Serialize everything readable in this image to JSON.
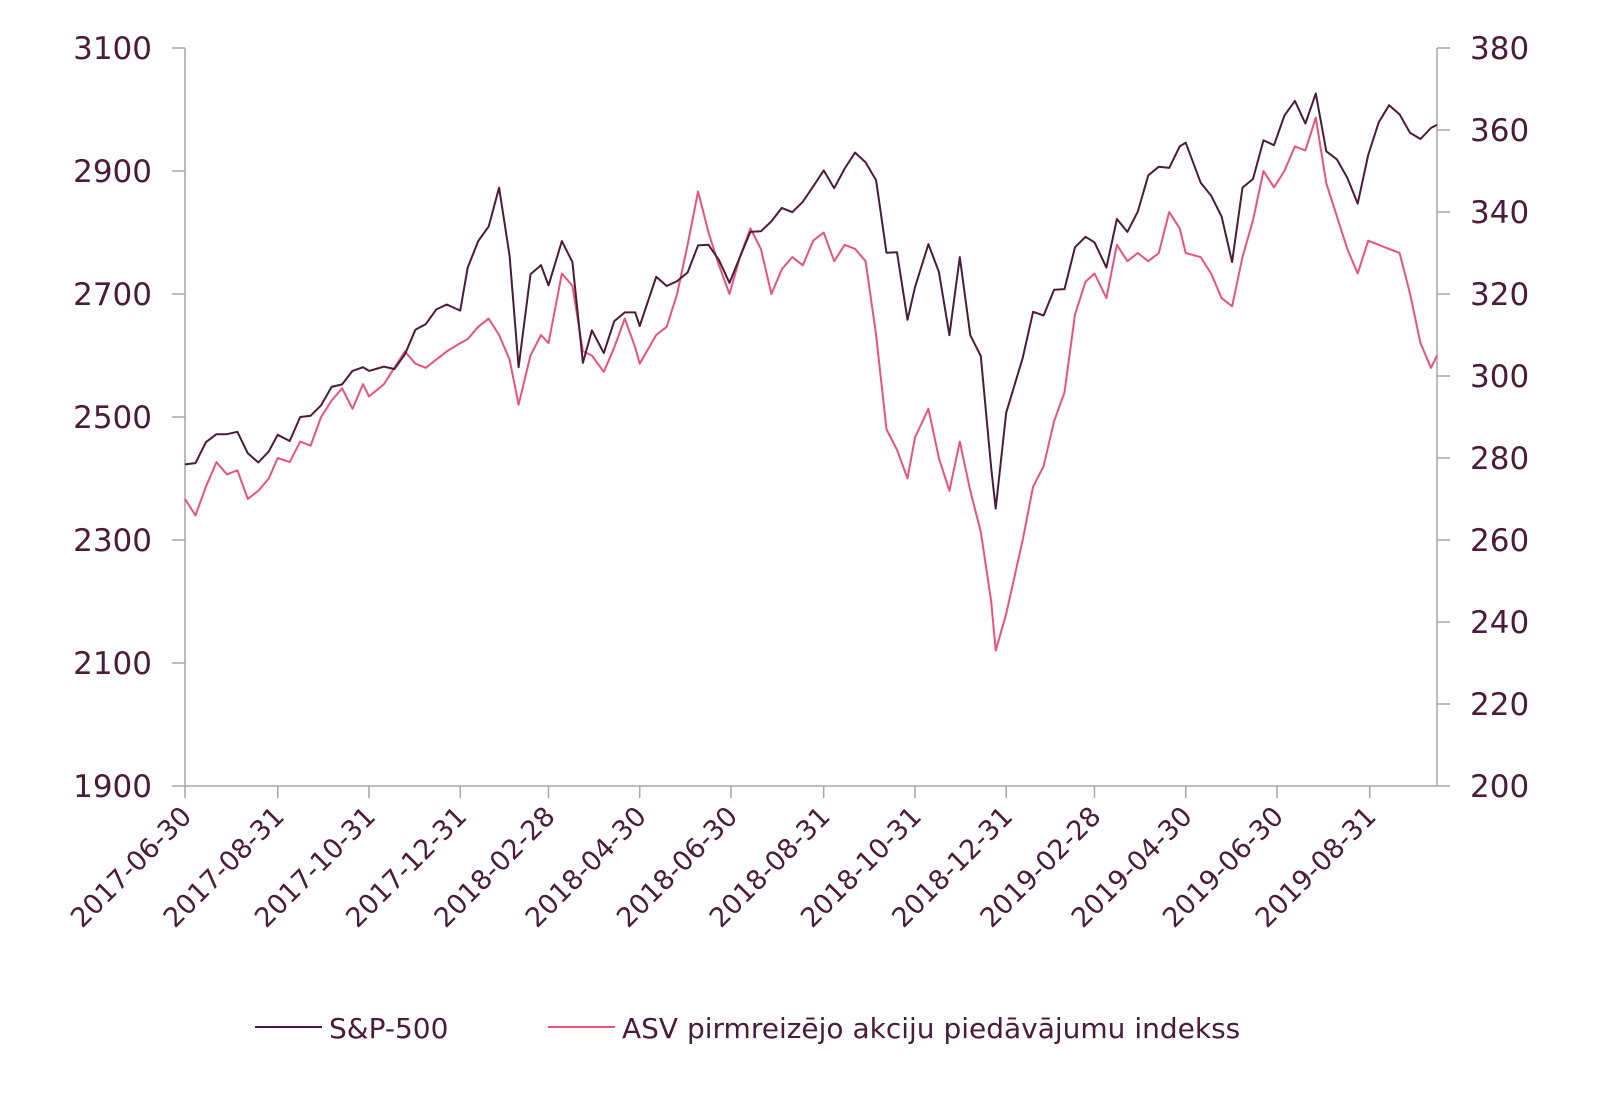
{
  "chart_data": {
    "type": "line",
    "title": "",
    "grid": false,
    "legend": "bottom",
    "x_tick_labels": [
      "2017-06-30",
      "2017-08-31",
      "2017-10-31",
      "2017-12-31",
      "2018-02-28",
      "2018-04-30",
      "2018-06-30",
      "2018-08-31",
      "2018-10-31",
      "2018-12-31",
      "2019-02-28",
      "2019-04-30",
      "2019-06-30",
      "2019-08-31"
    ],
    "x_range": [
      "2017-06-30",
      "2019-10-15"
    ],
    "left_axis": {
      "min": 1900,
      "max": 3100,
      "ticks": [
        "1900",
        "2100",
        "2300",
        "2500",
        "2700",
        "2900",
        "3100"
      ]
    },
    "right_axis": {
      "min": 200,
      "max": 380,
      "ticks": [
        "200",
        "220",
        "240",
        "260",
        "280",
        "300",
        "320",
        "340",
        "360",
        "380"
      ]
    },
    "series": [
      {
        "name": "S&P-500",
        "axis": "left",
        "color": "#4a1c3a",
        "points": [
          [
            "2017-06-30",
            2423
          ],
          [
            "2017-07-07",
            2425
          ],
          [
            "2017-07-14",
            2459
          ],
          [
            "2017-07-21",
            2472
          ],
          [
            "2017-07-28",
            2472
          ],
          [
            "2017-08-04",
            2476
          ],
          [
            "2017-08-11",
            2441
          ],
          [
            "2017-08-18",
            2426
          ],
          [
            "2017-08-25",
            2444
          ],
          [
            "2017-08-31",
            2471
          ],
          [
            "2017-09-08",
            2461
          ],
          [
            "2017-09-15",
            2500
          ],
          [
            "2017-09-22",
            2502
          ],
          [
            "2017-09-29",
            2519
          ],
          [
            "2017-10-06",
            2549
          ],
          [
            "2017-10-13",
            2553
          ],
          [
            "2017-10-20",
            2575
          ],
          [
            "2017-10-27",
            2581
          ],
          [
            "2017-10-31",
            2575
          ],
          [
            "2017-11-10",
            2582
          ],
          [
            "2017-11-17",
            2578
          ],
          [
            "2017-11-24",
            2602
          ],
          [
            "2017-12-01",
            2642
          ],
          [
            "2017-12-08",
            2651
          ],
          [
            "2017-12-15",
            2675
          ],
          [
            "2017-12-22",
            2683
          ],
          [
            "2017-12-31",
            2673
          ],
          [
            "2018-01-05",
            2743
          ],
          [
            "2018-01-12",
            2786
          ],
          [
            "2018-01-19",
            2810
          ],
          [
            "2018-01-26",
            2873
          ],
          [
            "2018-02-02",
            2762
          ],
          [
            "2018-02-08",
            2581
          ],
          [
            "2018-02-16",
            2732
          ],
          [
            "2018-02-23",
            2747
          ],
          [
            "2018-02-28",
            2714
          ],
          [
            "2018-03-09",
            2786
          ],
          [
            "2018-03-16",
            2752
          ],
          [
            "2018-03-23",
            2588
          ],
          [
            "2018-03-29",
            2641
          ],
          [
            "2018-04-06",
            2604
          ],
          [
            "2018-04-13",
            2656
          ],
          [
            "2018-04-20",
            2670
          ],
          [
            "2018-04-27",
            2670
          ],
          [
            "2018-04-30",
            2648
          ],
          [
            "2018-05-11",
            2728
          ],
          [
            "2018-05-18",
            2713
          ],
          [
            "2018-05-25",
            2721
          ],
          [
            "2018-06-01",
            2735
          ],
          [
            "2018-06-08",
            2779
          ],
          [
            "2018-06-15",
            2780
          ],
          [
            "2018-06-22",
            2755
          ],
          [
            "2018-06-29",
            2718
          ],
          [
            "2018-07-06",
            2760
          ],
          [
            "2018-07-13",
            2801
          ],
          [
            "2018-07-20",
            2802
          ],
          [
            "2018-07-27",
            2818
          ],
          [
            "2018-08-03",
            2840
          ],
          [
            "2018-08-10",
            2833
          ],
          [
            "2018-08-17",
            2850
          ],
          [
            "2018-08-24",
            2875
          ],
          [
            "2018-08-31",
            2901
          ],
          [
            "2018-09-07",
            2872
          ],
          [
            "2018-09-14",
            2904
          ],
          [
            "2018-09-21",
            2930
          ],
          [
            "2018-09-28",
            2914
          ],
          [
            "2018-10-05",
            2885
          ],
          [
            "2018-10-12",
            2767
          ],
          [
            "2018-10-19",
            2768
          ],
          [
            "2018-10-26",
            2658
          ],
          [
            "2018-10-31",
            2711
          ],
          [
            "2018-11-09",
            2781
          ],
          [
            "2018-11-16",
            2736
          ],
          [
            "2018-11-23",
            2633
          ],
          [
            "2018-11-30",
            2760
          ],
          [
            "2018-12-07",
            2633
          ],
          [
            "2018-12-14",
            2599
          ],
          [
            "2018-12-21",
            2417
          ],
          [
            "2018-12-24",
            2351
          ],
          [
            "2018-12-31",
            2507
          ],
          [
            "2019-01-11",
            2596
          ],
          [
            "2019-01-18",
            2671
          ],
          [
            "2019-01-25",
            2665
          ],
          [
            "2019-02-01",
            2707
          ],
          [
            "2019-02-08",
            2708
          ],
          [
            "2019-02-15",
            2776
          ],
          [
            "2019-02-22",
            2793
          ],
          [
            "2019-02-28",
            2784
          ],
          [
            "2019-03-08",
            2743
          ],
          [
            "2019-03-15",
            2822
          ],
          [
            "2019-03-22",
            2801
          ],
          [
            "2019-03-29",
            2834
          ],
          [
            "2019-04-05",
            2893
          ],
          [
            "2019-04-12",
            2907
          ],
          [
            "2019-04-19",
            2905
          ],
          [
            "2019-04-26",
            2940
          ],
          [
            "2019-04-30",
            2946
          ],
          [
            "2019-05-10",
            2881
          ],
          [
            "2019-05-17",
            2860
          ],
          [
            "2019-05-24",
            2826
          ],
          [
            "2019-05-31",
            2752
          ],
          [
            "2019-06-07",
            2873
          ],
          [
            "2019-06-14",
            2887
          ],
          [
            "2019-06-21",
            2950
          ],
          [
            "2019-06-28",
            2942
          ],
          [
            "2019-07-05",
            2990
          ],
          [
            "2019-07-12",
            3014
          ],
          [
            "2019-07-19",
            2977
          ],
          [
            "2019-07-26",
            3026
          ],
          [
            "2019-08-02",
            2932
          ],
          [
            "2019-08-09",
            2919
          ],
          [
            "2019-08-16",
            2889
          ],
          [
            "2019-08-23",
            2847
          ],
          [
            "2019-08-30",
            2926
          ],
          [
            "2019-09-06",
            2979
          ],
          [
            "2019-09-13",
            3007
          ],
          [
            "2019-09-20",
            2992
          ],
          [
            "2019-09-27",
            2962
          ],
          [
            "2019-10-04",
            2952
          ],
          [
            "2019-10-11",
            2970
          ],
          [
            "2019-10-15",
            2975
          ]
        ]
      },
      {
        "name": "ASV pirmreizējo akciju piedāvājumu indekss",
        "axis": "right",
        "color": "#e8547a",
        "points": [
          [
            "2017-06-30",
            270
          ],
          [
            "2017-07-07",
            266
          ],
          [
            "2017-07-14",
            273
          ],
          [
            "2017-07-21",
            279
          ],
          [
            "2017-07-28",
            276
          ],
          [
            "2017-08-04",
            277
          ],
          [
            "2017-08-11",
            270
          ],
          [
            "2017-08-18",
            272
          ],
          [
            "2017-08-25",
            275
          ],
          [
            "2017-08-31",
            280
          ],
          [
            "2017-09-08",
            279
          ],
          [
            "2017-09-15",
            284
          ],
          [
            "2017-09-22",
            283
          ],
          [
            "2017-09-29",
            290
          ],
          [
            "2017-10-06",
            294
          ],
          [
            "2017-10-13",
            297
          ],
          [
            "2017-10-20",
            292
          ],
          [
            "2017-10-27",
            298
          ],
          [
            "2017-10-31",
            295
          ],
          [
            "2017-11-10",
            298
          ],
          [
            "2017-11-17",
            302
          ],
          [
            "2017-11-24",
            306
          ],
          [
            "2017-12-01",
            303
          ],
          [
            "2017-12-08",
            302
          ],
          [
            "2017-12-15",
            304
          ],
          [
            "2017-12-22",
            306
          ],
          [
            "2017-12-31",
            308
          ],
          [
            "2018-01-05",
            309
          ],
          [
            "2018-01-12",
            312
          ],
          [
            "2018-01-19",
            314
          ],
          [
            "2018-01-26",
            310
          ],
          [
            "2018-02-02",
            304
          ],
          [
            "2018-02-08",
            293
          ],
          [
            "2018-02-16",
            305
          ],
          [
            "2018-02-23",
            310
          ],
          [
            "2018-02-28",
            308
          ],
          [
            "2018-03-09",
            325
          ],
          [
            "2018-03-16",
            322
          ],
          [
            "2018-03-23",
            306
          ],
          [
            "2018-03-29",
            305
          ],
          [
            "2018-04-06",
            301
          ],
          [
            "2018-04-13",
            307
          ],
          [
            "2018-04-20",
            314
          ],
          [
            "2018-04-27",
            307
          ],
          [
            "2018-04-30",
            303
          ],
          [
            "2018-05-11",
            310
          ],
          [
            "2018-05-18",
            312
          ],
          [
            "2018-05-25",
            320
          ],
          [
            "2018-06-01",
            332
          ],
          [
            "2018-06-08",
            345
          ],
          [
            "2018-06-15",
            335
          ],
          [
            "2018-06-22",
            327
          ],
          [
            "2018-06-29",
            320
          ],
          [
            "2018-07-06",
            329
          ],
          [
            "2018-07-13",
            336
          ],
          [
            "2018-07-20",
            331
          ],
          [
            "2018-07-27",
            320
          ],
          [
            "2018-08-03",
            326
          ],
          [
            "2018-08-10",
            329
          ],
          [
            "2018-08-17",
            327
          ],
          [
            "2018-08-24",
            333
          ],
          [
            "2018-08-31",
            335
          ],
          [
            "2018-09-07",
            328
          ],
          [
            "2018-09-14",
            332
          ],
          [
            "2018-09-21",
            331
          ],
          [
            "2018-09-28",
            328
          ],
          [
            "2018-10-05",
            310
          ],
          [
            "2018-10-12",
            287
          ],
          [
            "2018-10-19",
            282
          ],
          [
            "2018-10-26",
            275
          ],
          [
            "2018-10-31",
            285
          ],
          [
            "2018-11-09",
            292
          ],
          [
            "2018-11-16",
            280
          ],
          [
            "2018-11-23",
            272
          ],
          [
            "2018-11-30",
            284
          ],
          [
            "2018-12-07",
            272
          ],
          [
            "2018-12-14",
            262
          ],
          [
            "2018-12-21",
            245
          ],
          [
            "2018-12-24",
            233
          ],
          [
            "2018-12-31",
            242
          ],
          [
            "2019-01-11",
            260
          ],
          [
            "2019-01-18",
            273
          ],
          [
            "2019-01-25",
            278
          ],
          [
            "2019-02-01",
            289
          ],
          [
            "2019-02-08",
            296
          ],
          [
            "2019-02-15",
            315
          ],
          [
            "2019-02-22",
            323
          ],
          [
            "2019-02-28",
            325
          ],
          [
            "2019-03-08",
            319
          ],
          [
            "2019-03-15",
            332
          ],
          [
            "2019-03-22",
            328
          ],
          [
            "2019-03-29",
            330
          ],
          [
            "2019-04-05",
            328
          ],
          [
            "2019-04-12",
            330
          ],
          [
            "2019-04-19",
            340
          ],
          [
            "2019-04-26",
            336
          ],
          [
            "2019-04-30",
            330
          ],
          [
            "2019-05-10",
            329
          ],
          [
            "2019-05-17",
            325
          ],
          [
            "2019-05-24",
            319
          ],
          [
            "2019-05-31",
            317
          ],
          [
            "2019-06-07",
            329
          ],
          [
            "2019-06-14",
            338
          ],
          [
            "2019-06-21",
            350
          ],
          [
            "2019-06-28",
            346
          ],
          [
            "2019-07-05",
            350
          ],
          [
            "2019-07-12",
            356
          ],
          [
            "2019-07-19",
            355
          ],
          [
            "2019-07-26",
            363
          ],
          [
            "2019-08-02",
            347
          ],
          [
            "2019-08-09",
            339
          ],
          [
            "2019-08-16",
            331
          ],
          [
            "2019-08-23",
            325
          ],
          [
            "2019-08-30",
            333
          ],
          [
            "2019-09-06",
            332
          ],
          [
            "2019-09-13",
            331
          ],
          [
            "2019-09-20",
            330
          ],
          [
            "2019-09-27",
            320
          ],
          [
            "2019-10-04",
            308
          ],
          [
            "2019-10-11",
            302
          ],
          [
            "2019-10-15",
            305
          ]
        ]
      }
    ]
  }
}
